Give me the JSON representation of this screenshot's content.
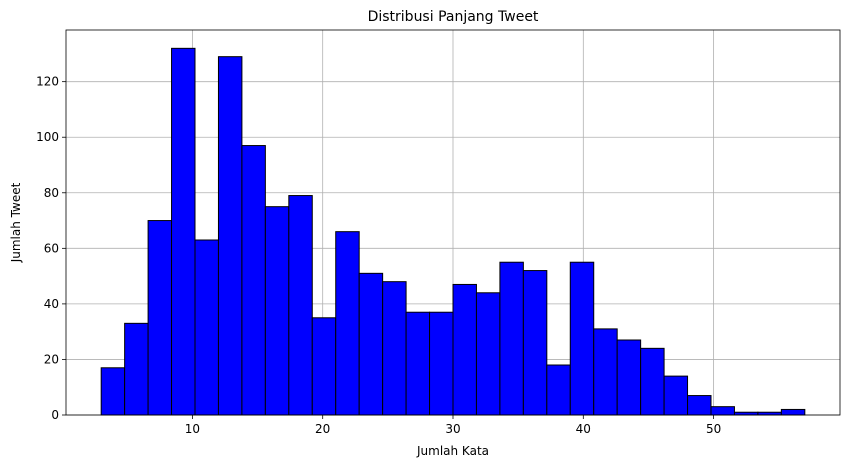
{
  "chart_data": {
    "type": "bar",
    "title": "Distribusi Panjang Tweet",
    "xlabel": "Jumlah Kata",
    "ylabel": "Jumlah Tweet",
    "xlim": [
      0.3,
      59.7
    ],
    "ylim": [
      0,
      138.6
    ],
    "xticks": [
      10,
      20,
      30,
      40,
      50
    ],
    "yticks": [
      0,
      20,
      40,
      60,
      80,
      100,
      120
    ],
    "grid": true,
    "bar_color": "#0000ff",
    "edge_color": "#000000",
    "bins": [
      {
        "x0": 3.0,
        "x1": 4.8,
        "value": 17
      },
      {
        "x0": 4.8,
        "x1": 6.6,
        "value": 33
      },
      {
        "x0": 6.6,
        "x1": 8.4,
        "value": 70
      },
      {
        "x0": 8.4,
        "x1": 10.2,
        "value": 132
      },
      {
        "x0": 10.2,
        "x1": 12.0,
        "value": 63
      },
      {
        "x0": 12.0,
        "x1": 13.8,
        "value": 129
      },
      {
        "x0": 13.8,
        "x1": 15.6,
        "value": 97
      },
      {
        "x0": 15.6,
        "x1": 17.4,
        "value": 75
      },
      {
        "x0": 17.4,
        "x1": 19.2,
        "value": 79
      },
      {
        "x0": 19.2,
        "x1": 21.0,
        "value": 35
      },
      {
        "x0": 21.0,
        "x1": 22.8,
        "value": 66
      },
      {
        "x0": 22.8,
        "x1": 24.6,
        "value": 51
      },
      {
        "x0": 24.6,
        "x1": 26.4,
        "value": 48
      },
      {
        "x0": 26.4,
        "x1": 28.2,
        "value": 37
      },
      {
        "x0": 28.2,
        "x1": 30.0,
        "value": 37
      },
      {
        "x0": 30.0,
        "x1": 31.8,
        "value": 47
      },
      {
        "x0": 31.8,
        "x1": 33.6,
        "value": 44
      },
      {
        "x0": 33.6,
        "x1": 35.4,
        "value": 55
      },
      {
        "x0": 35.4,
        "x1": 37.2,
        "value": 52
      },
      {
        "x0": 37.2,
        "x1": 39.0,
        "value": 18
      },
      {
        "x0": 39.0,
        "x1": 40.8,
        "value": 55
      },
      {
        "x0": 40.8,
        "x1": 42.6,
        "value": 31
      },
      {
        "x0": 42.6,
        "x1": 44.4,
        "value": 27
      },
      {
        "x0": 44.4,
        "x1": 46.2,
        "value": 24
      },
      {
        "x0": 46.2,
        "x1": 48.0,
        "value": 14
      },
      {
        "x0": 48.0,
        "x1": 49.8,
        "value": 7
      },
      {
        "x0": 49.8,
        "x1": 51.6,
        "value": 3
      },
      {
        "x0": 51.6,
        "x1": 53.4,
        "value": 1
      },
      {
        "x0": 53.4,
        "x1": 55.2,
        "value": 1
      },
      {
        "x0": 55.2,
        "x1": 57.0,
        "value": 2
      }
    ]
  }
}
